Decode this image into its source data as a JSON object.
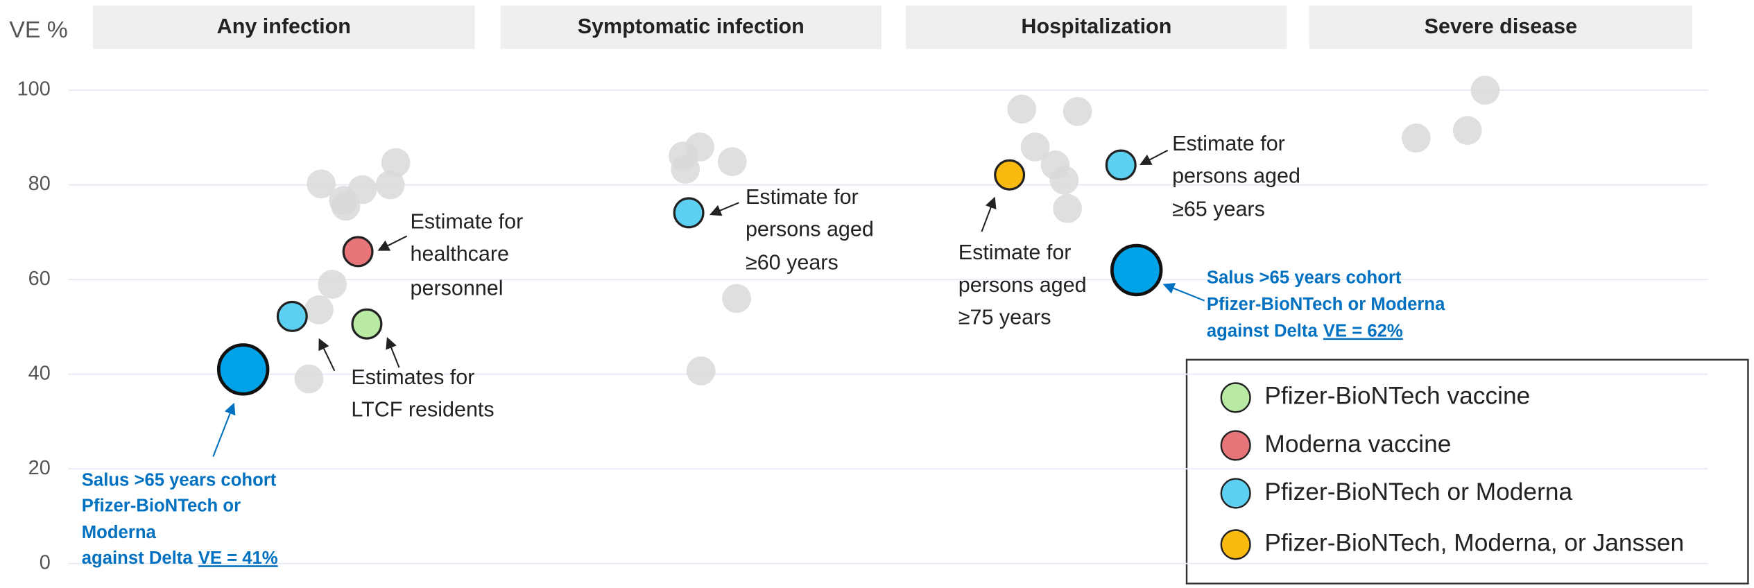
{
  "chart_data": {
    "type": "scatter",
    "y_label": "VE %",
    "ylim": [
      0,
      100
    ],
    "yticks": [
      0,
      20,
      40,
      60,
      80,
      100
    ],
    "grid": true,
    "legend": "lower right",
    "categories": [
      "Any infection",
      "Symptomatic infection",
      "Hospitalization",
      "Severe disease"
    ],
    "other_color": "#d9d9d9",
    "other_values": [
      [
        80.2,
        75.5,
        76.7,
        79,
        80,
        84.7,
        59,
        53.6,
        39
      ],
      [
        86.1,
        88,
        83.3,
        84.9,
        56,
        40.7
      ],
      [
        96,
        95.5,
        88,
        84.2,
        81,
        75
      ],
      [
        89.9,
        91.5,
        100
      ]
    ],
    "series": [
      {
        "name": "Pfizer-BioNTech vaccine",
        "color": "#b9eaa4",
        "values": [
          50.6,
          null,
          null,
          null
        ]
      },
      {
        "name": "Moderna vaccine",
        "color": "#e8757a",
        "values": [
          65.9,
          null,
          null,
          null
        ]
      },
      {
        "name": "Pfizer-BioNTech or Moderna",
        "color": "#5dd0f2",
        "values": [
          52.2,
          74.1,
          84.2,
          null
        ]
      },
      {
        "name": "Pfizer-BioNTech, Moderna, or Janssen",
        "color": "#f9b90f",
        "values": [
          null,
          null,
          82.1,
          null
        ]
      }
    ],
    "annotations": [
      {
        "lines": [
          "Estimate for",
          "healthcare",
          "personnel"
        ]
      },
      {
        "lines": [
          "Estimates for",
          "LTCF residents"
        ]
      },
      {
        "lines": [
          "Estimate for",
          "persons aged",
          "≥60 years"
        ]
      },
      {
        "lines": [
          "Estimate for",
          "persons aged",
          "≥75 years"
        ]
      },
      {
        "lines": [
          "Estimate for",
          "persons aged",
          "≥65 years"
        ]
      },
      {
        "lines": [
          "Salus >65 years cohort",
          "Pfizer-BioNTech or",
          "Moderna",
          "against Delta"
        ],
        "value": 41,
        "value_label": "VE = 41%",
        "color": "#00a2e8"
      },
      {
        "lines": [
          "Salus >65 years cohort",
          "Pfizer-BioNTech or Moderna",
          "against Delta"
        ],
        "value": 62,
        "value_label": "VE = 62%",
        "color": "#00a2e8"
      }
    ]
  }
}
